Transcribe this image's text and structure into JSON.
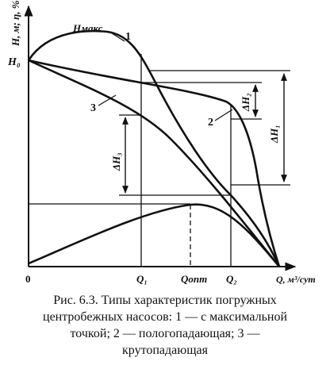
{
  "diagram": {
    "y_axis_label": "H, м; η, %",
    "x_axis_label": "Q, м³/сут",
    "origin_label": "0",
    "h0_label": "H₀",
    "hmax_label": "Hмакс",
    "q_marks": [
      "Q₁",
      "Qопт",
      "Q₂"
    ],
    "curve_labels": [
      "1",
      "2",
      "3"
    ],
    "delta_labels": [
      "ΔH₁",
      "ΔH₂",
      "ΔH₃"
    ]
  },
  "caption": {
    "lines": [
      "Рис. 6.3. Типы характеристик погружных",
      "центробежных насосов: 1 — с максимальной",
      "точкой; 2 — пологопадающая; 3 —",
      "крутопадающая"
    ]
  }
}
